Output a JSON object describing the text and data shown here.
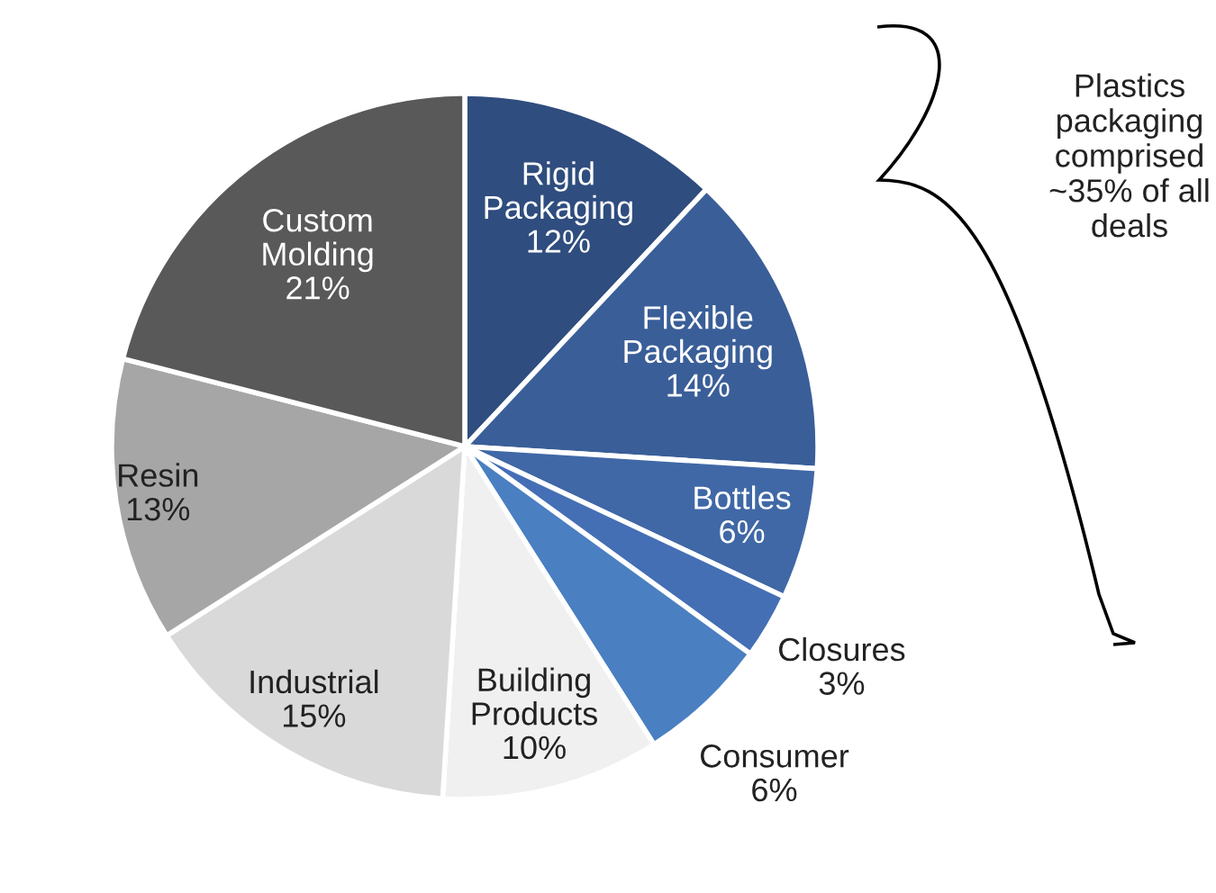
{
  "chart_data": {
    "type": "pie",
    "categories": [
      "Rigid Packaging",
      "Flexible Packaging",
      "Bottles",
      "Closures",
      "Consumer",
      "Building Products",
      "Industrial",
      "Resin",
      "Custom Molding"
    ],
    "values": [
      12,
      14,
      6,
      3,
      6,
      10,
      15,
      13,
      21
    ],
    "colors": [
      "#2f4d7e",
      "#3a5e98",
      "#4068a6",
      "#446fb5",
      "#4a7fc1",
      "#f0f0f0",
      "#d9d9d9",
      "#a6a6a6",
      "#595959"
    ],
    "value_labels": [
      "12%",
      "14%",
      "6%",
      "3%",
      "6%",
      "10%",
      "15%",
      "13%",
      "21%"
    ],
    "annotations": [
      "Plastics packaging comprised ~35% of all deals"
    ]
  }
}
